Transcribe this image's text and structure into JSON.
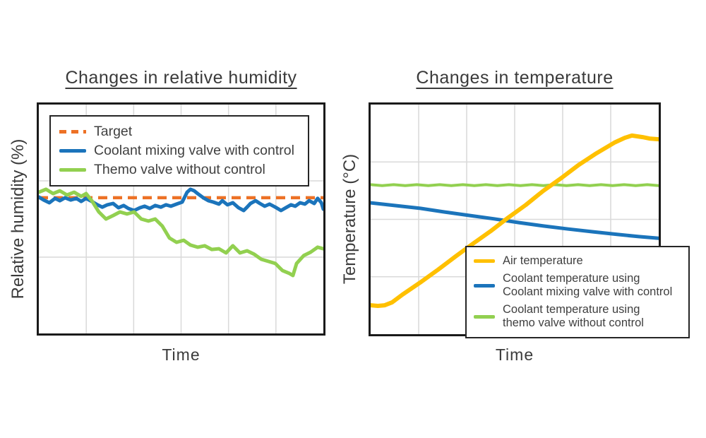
{
  "figure": {
    "background": "#ffffff",
    "text_color": "#3b3b3b",
    "border_color": "#1a1a1a"
  },
  "chart_data": [
    {
      "type": "line",
      "title": "Changes in relative humidity",
      "xlabel": "Time",
      "ylabel": "Relative humidity (%)",
      "axes": {
        "xlim": [
          0,
          100
        ],
        "ylim": [
          0,
          100
        ],
        "tick_labels": "none",
        "units": "normalized percent of plot range (axes are unlabeled in source)"
      },
      "grid": {
        "on": true,
        "cols": 6,
        "rows": 3,
        "color": "#d9d9d9"
      },
      "legend": {
        "position": "inside-top-left",
        "items": [
          {
            "label": "Target",
            "color": "#ED7125",
            "style": "dashed"
          },
          {
            "label": "Coolant mixing valve with control",
            "color": "#1B74BB",
            "style": "solid"
          },
          {
            "label": "Themo valve without control",
            "color": "#92D050",
            "style": "solid"
          }
        ]
      },
      "series": [
        {
          "name": "Target",
          "color": "#ED7125",
          "style": "dashed",
          "width": 4.5,
          "points": [
            [
              0,
              59.3
            ],
            [
              100,
              59.3
            ]
          ]
        },
        {
          "name": "Coolant mixing valve with control",
          "color": "#1B74BB",
          "style": "solid",
          "width": 5,
          "points": [
            [
              0,
              59.6
            ],
            [
              1.7,
              58.3
            ],
            [
              3.7,
              57.1
            ],
            [
              5.7,
              59
            ],
            [
              7.4,
              58
            ],
            [
              9.2,
              59.3
            ],
            [
              11.2,
              58.3
            ],
            [
              13.2,
              59
            ],
            [
              14.9,
              57.7
            ],
            [
              16.6,
              59
            ],
            [
              18.6,
              57.7
            ],
            [
              20.6,
              56.2
            ],
            [
              22.3,
              55.2
            ],
            [
              24.1,
              56.2
            ],
            [
              26.1,
              56.8
            ],
            [
              28,
              54.9
            ],
            [
              29.8,
              55.9
            ],
            [
              31.5,
              54.6
            ],
            [
              33.5,
              53.7
            ],
            [
              35.5,
              54.9
            ],
            [
              37.2,
              55.6
            ],
            [
              39,
              54.6
            ],
            [
              40.9,
              55.9
            ],
            [
              42.9,
              55.2
            ],
            [
              44.7,
              56.2
            ],
            [
              46.4,
              55.6
            ],
            [
              48.4,
              56.5
            ],
            [
              50.4,
              57.4
            ],
            [
              52.1,
              61.7
            ],
            [
              53.3,
              63
            ],
            [
              54.6,
              62.3
            ],
            [
              55.8,
              61.1
            ],
            [
              57.8,
              59.3
            ],
            [
              59.6,
              58
            ],
            [
              61.3,
              57.4
            ],
            [
              63.3,
              56.5
            ],
            [
              64.5,
              58
            ],
            [
              66.3,
              56.2
            ],
            [
              68.2,
              57.1
            ],
            [
              70.2,
              54.9
            ],
            [
              72,
              53.7
            ],
            [
              73.2,
              55.2
            ],
            [
              74.4,
              56.8
            ],
            [
              76.2,
              58
            ],
            [
              77.7,
              56.8
            ],
            [
              79.4,
              55.6
            ],
            [
              81.1,
              56.5
            ],
            [
              83.1,
              55.2
            ],
            [
              85.1,
              53.7
            ],
            [
              86.8,
              54.9
            ],
            [
              88.6,
              56.2
            ],
            [
              90.1,
              55.6
            ],
            [
              91.8,
              57.1
            ],
            [
              93.5,
              56.5
            ],
            [
              95,
              58
            ],
            [
              96.8,
              56.8
            ],
            [
              98,
              59
            ],
            [
              99.3,
              57.1
            ],
            [
              100,
              54.3
            ]
          ]
        },
        {
          "name": "Themo valve without control",
          "color": "#92D050",
          "style": "solid",
          "width": 5,
          "points": [
            [
              0,
              61.7
            ],
            [
              2.5,
              63
            ],
            [
              5,
              61.1
            ],
            [
              7.4,
              62.3
            ],
            [
              9.9,
              60.5
            ],
            [
              12.4,
              61.7
            ],
            [
              14.9,
              59.9
            ],
            [
              16.6,
              61.1
            ],
            [
              18.6,
              58
            ],
            [
              21.1,
              53.1
            ],
            [
              23.6,
              50
            ],
            [
              26.1,
              51.5
            ],
            [
              28.5,
              53.1
            ],
            [
              31,
              52.2
            ],
            [
              33.5,
              53.1
            ],
            [
              36,
              50
            ],
            [
              38.5,
              49.1
            ],
            [
              40.9,
              50
            ],
            [
              43.4,
              46.9
            ],
            [
              45.9,
              41.7
            ],
            [
              48.4,
              39.8
            ],
            [
              50.9,
              40.7
            ],
            [
              53.3,
              38.6
            ],
            [
              55.8,
              37.7
            ],
            [
              58.3,
              38.3
            ],
            [
              60.8,
              36.7
            ],
            [
              63.3,
              37
            ],
            [
              65.8,
              35.2
            ],
            [
              68.2,
              38.3
            ],
            [
              70.7,
              35.2
            ],
            [
              73.2,
              36.1
            ],
            [
              75.7,
              34.6
            ],
            [
              78.2,
              32.4
            ],
            [
              80.6,
              31.5
            ],
            [
              83.1,
              30.6
            ],
            [
              85.6,
              27.5
            ],
            [
              88.1,
              26.2
            ],
            [
              89.3,
              25.3
            ],
            [
              90.6,
              30.6
            ],
            [
              93.1,
              34
            ],
            [
              95.5,
              35.5
            ],
            [
              98,
              37.7
            ],
            [
              100,
              37
            ]
          ]
        }
      ]
    },
    {
      "type": "line",
      "title": "Changes in temperature",
      "xlabel": "Time",
      "ylabel": "Temperature (°C)",
      "axes": {
        "xlim": [
          0,
          100
        ],
        "ylim": [
          0,
          100
        ],
        "tick_labels": "none",
        "units": "normalized percent of plot range (axes are unlabeled in source)"
      },
      "grid": {
        "on": true,
        "cols": 6,
        "rows": 4,
        "color": "#d9d9d9"
      },
      "legend": {
        "position": "inside-bottom-right-overflowing",
        "items": [
          {
            "label": "Air temperature",
            "color": "#FFC000",
            "style": "solid"
          },
          {
            "lines": [
              "Coolant temperature using",
              "Coolant mixing valve with control"
            ],
            "color": "#1B74BB",
            "style": "solid"
          },
          {
            "lines": [
              "Coolant temperature using",
              "themo valve without control"
            ],
            "color": "#92D050",
            "style": "solid"
          }
        ]
      },
      "series": [
        {
          "name": "Coolant temperature using themo valve without control",
          "color": "#92D050",
          "style": "solid",
          "width": 4,
          "points": [
            [
              0,
              65.1
            ],
            [
              4,
              64.7
            ],
            [
              8,
              65.1
            ],
            [
              12,
              64.7
            ],
            [
              16,
              65.1
            ],
            [
              20,
              64.7
            ],
            [
              24,
              65.1
            ],
            [
              28,
              64.7
            ],
            [
              32,
              65.1
            ],
            [
              36,
              64.7
            ],
            [
              40,
              65.1
            ],
            [
              44,
              64.7
            ],
            [
              48,
              65.1
            ],
            [
              52,
              64.7
            ],
            [
              56,
              65.1
            ],
            [
              60,
              64.7
            ],
            [
              64,
              65.1
            ],
            [
              68,
              64.7
            ],
            [
              72,
              65.1
            ],
            [
              76,
              64.7
            ],
            [
              80,
              65.1
            ],
            [
              84,
              64.7
            ],
            [
              88,
              65.1
            ],
            [
              92,
              64.7
            ],
            [
              96,
              65.1
            ],
            [
              100,
              64.7
            ]
          ]
        },
        {
          "name": "Coolant temperature using Coolant mixing valve with control",
          "color": "#1B74BB",
          "style": "solid",
          "width": 5,
          "points": [
            [
              0,
              57.2
            ],
            [
              8.6,
              56
            ],
            [
              17.2,
              54.8
            ],
            [
              25.7,
              53.2
            ],
            [
              34.3,
              51.7
            ],
            [
              42.9,
              50.2
            ],
            [
              51.5,
              48.6
            ],
            [
              60,
              47.1
            ],
            [
              68.6,
              45.8
            ],
            [
              77.2,
              44.6
            ],
            [
              85.8,
              43.4
            ],
            [
              93.1,
              42.5
            ],
            [
              100,
              41.8
            ]
          ]
        },
        {
          "name": "Air temperature",
          "color": "#FFC000",
          "style": "solid",
          "width": 6,
          "points": [
            [
              0,
              12.6
            ],
            [
              2.5,
              12.3
            ],
            [
              4.9,
              12.6
            ],
            [
              7.4,
              13.8
            ],
            [
              11,
              17.2
            ],
            [
              17.2,
              22.5
            ],
            [
              23.3,
              28
            ],
            [
              29.4,
              33.8
            ],
            [
              35.5,
              39.4
            ],
            [
              41.7,
              44.9
            ],
            [
              47.8,
              50.8
            ],
            [
              53.9,
              56.3
            ],
            [
              60,
              62.5
            ],
            [
              66.2,
              68
            ],
            [
              72.3,
              73.8
            ],
            [
              78.4,
              78.8
            ],
            [
              84.6,
              83.4
            ],
            [
              88.2,
              85.5
            ],
            [
              90.7,
              86.5
            ],
            [
              94.4,
              85.8
            ],
            [
              96.8,
              85.2
            ],
            [
              100,
              84.9
            ]
          ]
        }
      ]
    }
  ]
}
